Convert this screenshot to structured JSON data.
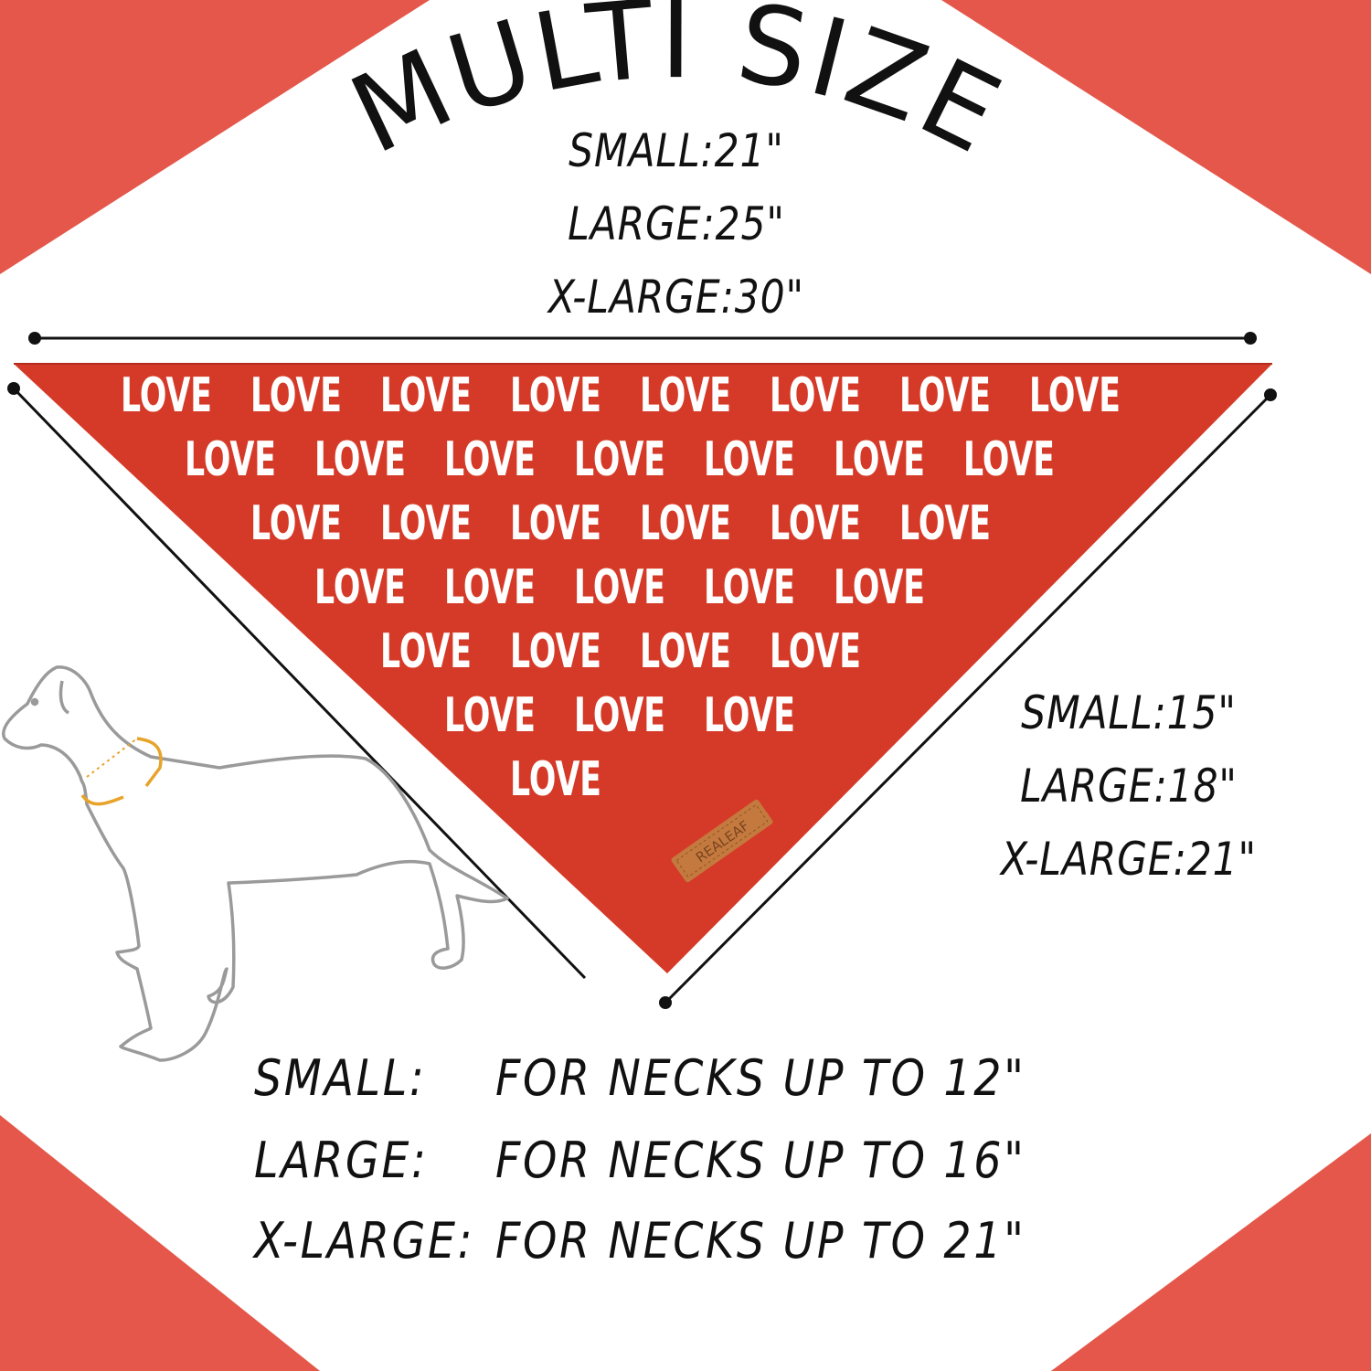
{
  "title": "MULTI SIZE",
  "width_sizes": [
    {
      "label": "SMALL:21\""
    },
    {
      "label": "LARGE:25\""
    },
    {
      "label": "X-LARGE:30\""
    }
  ],
  "length_sizes": [
    {
      "label": "SMALL:15\""
    },
    {
      "label": "LARGE:18\""
    },
    {
      "label": "X-LARGE:21\""
    }
  ],
  "neck_sizes": [
    {
      "size": "SMALL:",
      "text": "FOR NECKS UP TO 12\""
    },
    {
      "size": "LARGE:",
      "text": "FOR NECKS UP TO 16\""
    },
    {
      "size": "X-LARGE:",
      "text": "FOR NECKS UP TO 21\""
    }
  ],
  "bandana": {
    "pattern_word": "LOVE",
    "tag_brand": "REALEAF"
  },
  "colors": {
    "corner_accent": "#e4574a",
    "bandana_red": "#d53a28",
    "pattern_text": "#ffffff",
    "tag": "#c47a3e",
    "dog_outline": "#9a9a9a",
    "neck_arrow": "#e8a32a"
  }
}
